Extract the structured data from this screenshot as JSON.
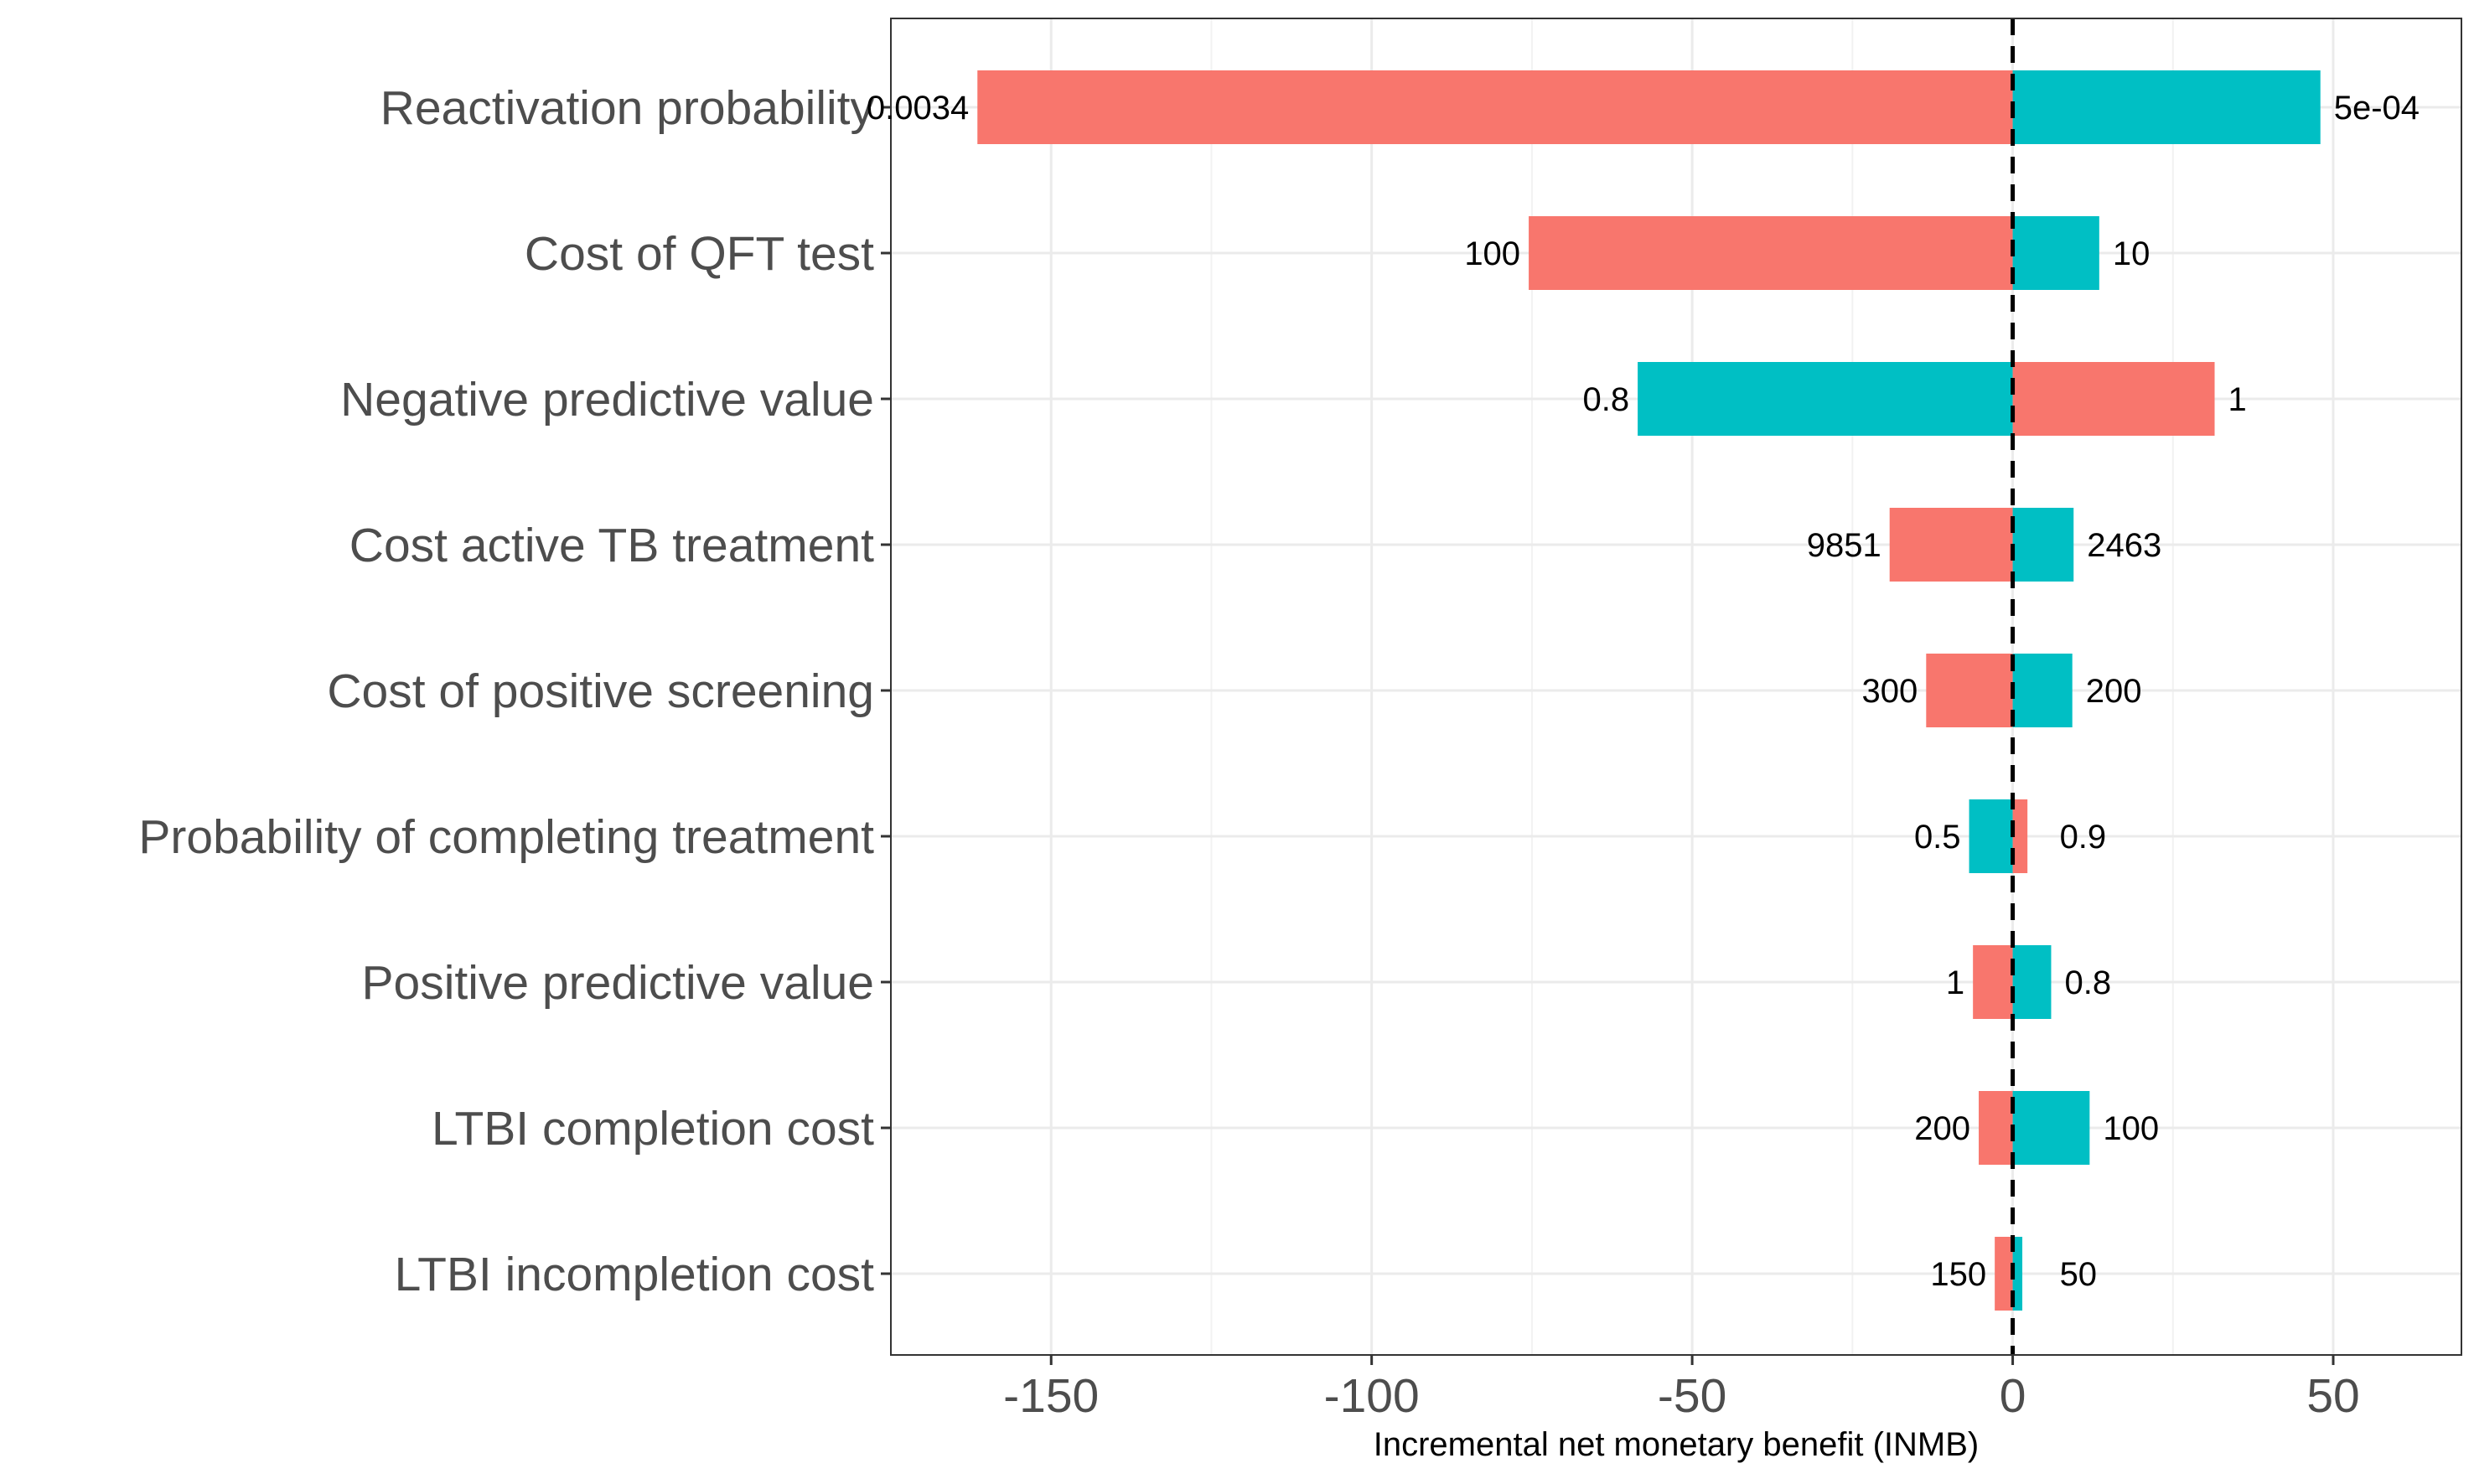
{
  "chart_data": {
    "type": "bar",
    "orientation": "horizontal",
    "subtype": "tornado",
    "title": "",
    "xlabel": "Incremental net monetary benefit (INMB)",
    "ylabel": "",
    "xlim": [
      -175,
      70
    ],
    "xticks": [
      -150,
      -100,
      -50,
      0,
      50
    ],
    "xtick_labels": [
      "-150",
      "-100",
      "-50",
      "0",
      "50"
    ],
    "grid": true,
    "reference_line": {
      "x": 0,
      "style": "dashed"
    },
    "colors": {
      "red": "#F8766D",
      "teal": "#00BFC4"
    },
    "categories": [
      "Reactivation probability",
      "Cost of QFT test",
      "Negative predictive value",
      "Cost active TB treatment",
      "Cost of positive screening",
      "Probability of completing treatment",
      "Positive predictive value",
      "LTBI completion cost",
      "LTBI incompletion cost"
    ],
    "bars": [
      {
        "low": -161.5,
        "high": 48.0,
        "low_color": "red",
        "high_color": "teal",
        "low_label": "0.0034",
        "high_label": "5e-04"
      },
      {
        "low": -75.5,
        "high": 13.5,
        "low_color": "red",
        "high_color": "teal",
        "low_label": "100",
        "high_label": "10"
      },
      {
        "low": -58.5,
        "high": 31.5,
        "low_color": "teal",
        "high_color": "red",
        "low_label": "0.8",
        "high_label": "1"
      },
      {
        "low": -19.2,
        "high": 9.5,
        "low_color": "red",
        "high_color": "teal",
        "low_label": "9851",
        "high_label": "2463"
      },
      {
        "low": -13.5,
        "high": 9.3,
        "low_color": "red",
        "high_color": "teal",
        "low_label": "300",
        "high_label": "200"
      },
      {
        "low": -6.8,
        "high": 2.3,
        "low_color": "teal",
        "high_color": "red",
        "low_label": "0.5",
        "high_label": "0.9"
      },
      {
        "low": -6.2,
        "high": 6.0,
        "low_color": "red",
        "high_color": "teal",
        "low_label": "1",
        "high_label": "0.8"
      },
      {
        "low": -5.3,
        "high": 12.0,
        "low_color": "red",
        "high_color": "teal",
        "low_label": "200",
        "high_label": "100"
      },
      {
        "low": -2.8,
        "high": 1.5,
        "low_color": "red",
        "high_color": "teal",
        "low_label": "150",
        "high_label": "50"
      }
    ]
  }
}
